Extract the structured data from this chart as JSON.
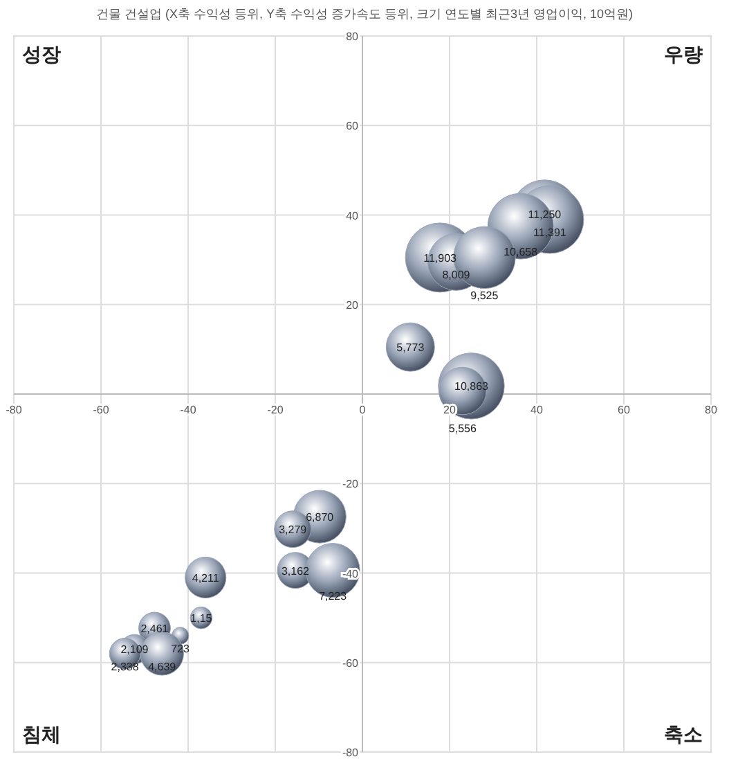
{
  "chart_data": {
    "type": "bubble",
    "title": "건물 건설업 (X축 수익성 등위, Y축 수익성 증가속도 등위, 크기 연도별 최근3년 영업이익, 10억원)",
    "x": [
      41.8,
      43,
      36.3,
      17.8,
      21.5,
      28,
      11,
      25,
      23,
      -9.8,
      -16,
      -15.4,
      -6.8,
      -36,
      -37,
      -47.7,
      -41.8,
      -52.3,
      -54.5,
      -46
    ],
    "series": [
      {
        "color": "#9aa5b8",
        "values": [
          40.3,
          39,
          37.5,
          30.5,
          29.5,
          30.5,
          10.5,
          1.8,
          0.7,
          -27.4,
          -30.2,
          -39.4,
          -39.4,
          -41,
          -50,
          -52.3,
          -54,
          -57,
          -58,
          -58
        ],
        "sizes": [
          0.95,
          0.96,
          0.9,
          1,
          0.67,
          0.8,
          0.49,
          0.91,
          0.47,
          0.58,
          0.28,
          0.27,
          0.61,
          0.35,
          0.1,
          0.21,
          0.06,
          0.18,
          0.2,
          0.39
        ]
      }
    ],
    "xlim": [
      -80,
      80
    ],
    "ylim": [
      -80,
      80
    ],
    "xticks": [
      -80,
      -60,
      -40,
      -20,
      0,
      20,
      40,
      60,
      80
    ],
    "yticks": [
      -80,
      -60,
      -40,
      -20,
      20,
      40,
      60,
      80
    ],
    "grid": true,
    "annotations": [
      "성장",
      "우량",
      "침체",
      "축소",
      {
        "text": "11,250",
        "x": 41.8,
        "y": 40.3
      },
      {
        "text": "11,391",
        "x": 43,
        "y": 39
      },
      {
        "text": "10,658",
        "x": 36.3,
        "y": 37.5
      },
      {
        "text": "11,903",
        "x": 17.8,
        "y": 30.5
      },
      {
        "text": "8,009",
        "x": 21.5,
        "y": 29.5
      },
      {
        "text": "9,525",
        "x": 28,
        "y": 30.5
      },
      {
        "text": "5,773",
        "x": 11,
        "y": 10.5
      },
      {
        "text": "10,863",
        "x": 25,
        "y": 1.8
      },
      {
        "text": "5,556",
        "x": 23,
        "y": 0.7
      },
      {
        "text": "6,870",
        "x": -9.8,
        "y": -27.4
      },
      {
        "text": "3,279",
        "x": -16,
        "y": -30.2
      },
      {
        "text": "3,162",
        "x": -15.4,
        "y": -39.4
      },
      {
        "text": "7,223",
        "x": -6.8,
        "y": -39.4
      },
      {
        "text": "4,211",
        "x": -36,
        "y": -41
      },
      {
        "text": "1,15",
        "x": -37,
        "y": -50
      },
      {
        "text": "2,461",
        "x": -47.7,
        "y": -52.3
      },
      {
        "text": "723",
        "x": -41.8,
        "y": -54
      },
      {
        "text": "2,109",
        "x": -52.3,
        "y": -57
      },
      {
        "text": "2,338",
        "x": -54.5,
        "y": -58
      },
      {
        "text": "4,639",
        "x": -46,
        "y": -58
      }
    ]
  }
}
